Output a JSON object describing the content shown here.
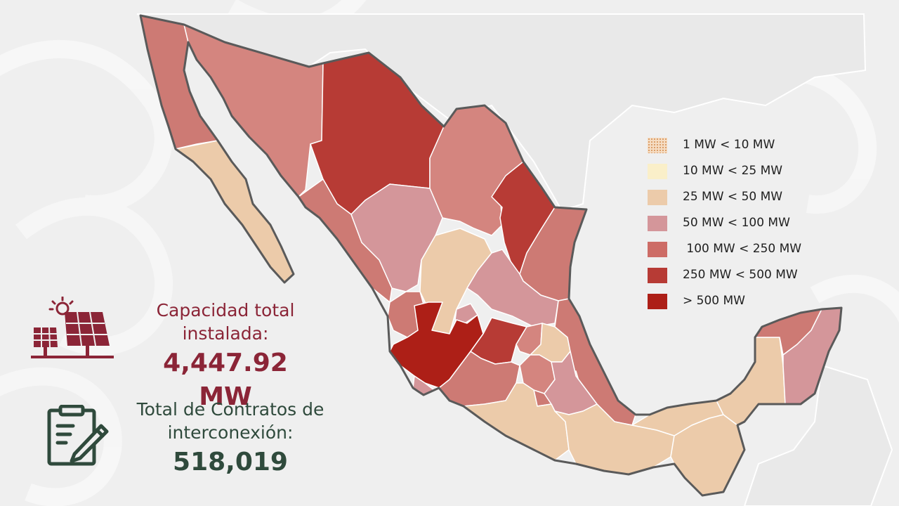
{
  "legend": {
    "items": [
      {
        "label": "1 MW < 10 MW",
        "color": "#e9b98f",
        "pattern": "dotted"
      },
      {
        "label": "10 MW < 25 MW",
        "color": "#faefc9"
      },
      {
        "label": "25 MW < 50 MW",
        "color": "#eccbaa"
      },
      {
        "label": "50 MW < 100 MW",
        "color": "#d4969a"
      },
      {
        "label": " 100 MW < 250 MW",
        "color": "#cd6c66"
      },
      {
        "label": "250 MW < 500 MW",
        "color": "#b73b35"
      },
      {
        "label": "> 500 MW",
        "color": "#ad1f17"
      }
    ]
  },
  "capacity": {
    "title_line1": "Capacidad total",
    "title_line2": "instalada:",
    "value": "4,447.92 MW",
    "color": "#8b2537",
    "icon": "solar-panel-icon"
  },
  "contracts": {
    "title_line1": "Total de Contratos de",
    "title_line2": "interconexión:",
    "value": "518,019",
    "color": "#2f4a3c",
    "icon": "contract-document-icon"
  }
}
